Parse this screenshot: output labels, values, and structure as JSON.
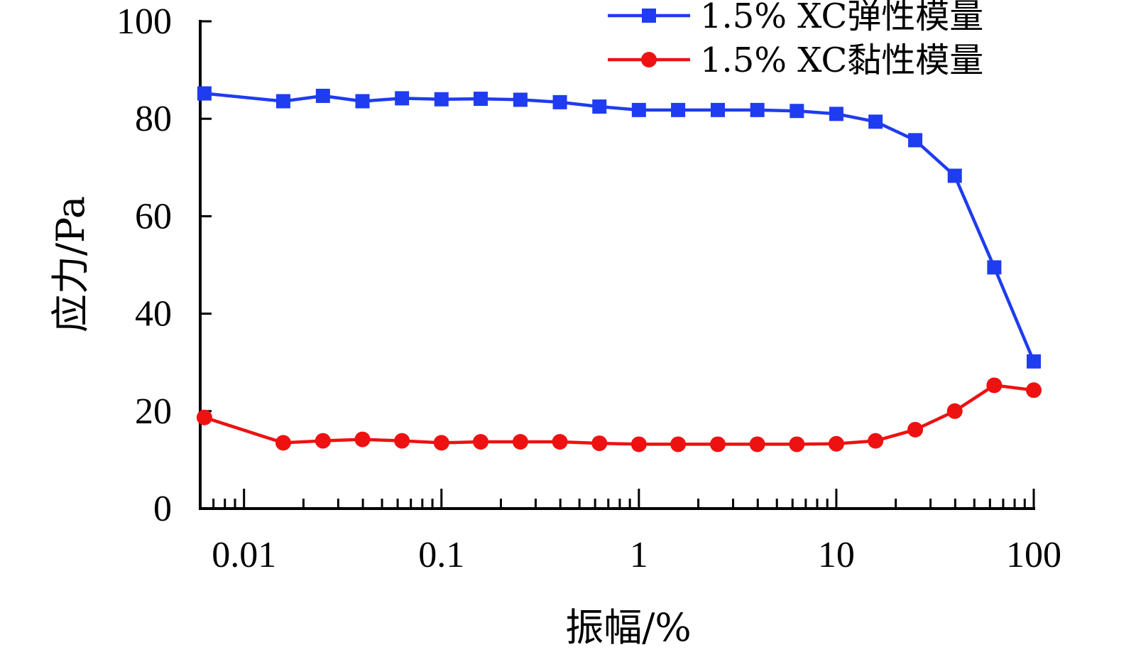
{
  "chart_data": {
    "type": "line",
    "title": "",
    "xlabel": "振幅/%",
    "ylabel": "应力/Pa",
    "x_scale": "log",
    "xlim": [
      0.006,
      100
    ],
    "ylim": [
      0,
      100
    ],
    "x_ticks": [
      {
        "value": 0.01,
        "label": "0.01"
      },
      {
        "value": 0.1,
        "label": "0.1"
      },
      {
        "value": 1,
        "label": "1"
      },
      {
        "value": 10,
        "label": "10"
      },
      {
        "value": 100,
        "label": "100"
      }
    ],
    "y_ticks": [
      {
        "value": 0,
        "label": "0"
      },
      {
        "value": 20,
        "label": "20"
      },
      {
        "value": 40,
        "label": "40"
      },
      {
        "value": 60,
        "label": "60"
      },
      {
        "value": 80,
        "label": "80"
      },
      {
        "value": 100,
        "label": "100"
      }
    ],
    "grid": false,
    "legend_position": "top-right",
    "x": [
      0.0063,
      0.0158,
      0.0251,
      0.0398,
      0.0631,
      0.1,
      0.158,
      0.251,
      0.398,
      0.631,
      1,
      1.58,
      2.51,
      3.98,
      6.31,
      10,
      15.8,
      25.1,
      39.8,
      63.1,
      100
    ],
    "series": [
      {
        "name": "1.5% XC弹性模量",
        "color": "#1f3cf0",
        "marker": "square",
        "values": [
          85.2,
          83.6,
          84.7,
          83.6,
          84.2,
          84.0,
          84.1,
          83.9,
          83.4,
          82.5,
          81.8,
          81.8,
          81.8,
          81.8,
          81.6,
          81.0,
          79.4,
          75.6,
          68.3,
          49.5,
          30.2
        ]
      },
      {
        "name": "1.5% XC黏性模量",
        "color": "#ee1111",
        "marker": "circle",
        "values": [
          18.7,
          13.5,
          13.9,
          14.2,
          13.9,
          13.5,
          13.7,
          13.7,
          13.7,
          13.4,
          13.2,
          13.2,
          13.2,
          13.2,
          13.2,
          13.3,
          13.9,
          16.2,
          20.0,
          25.3,
          24.3
        ]
      }
    ]
  }
}
